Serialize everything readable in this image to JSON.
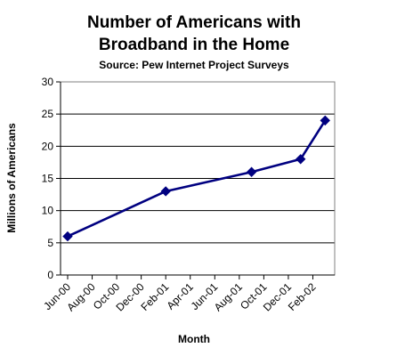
{
  "chart_data": {
    "type": "line",
    "title": "Number of Americans with Broadband in the Home",
    "title_lines": [
      "Number of Americans with",
      "Broadband in the Home"
    ],
    "subtitle": "Source: Pew Internet Project Surveys",
    "xlabel": "Month",
    "ylabel": "Millions of Americans",
    "x_tick_labels": [
      "Jun-00",
      "Aug-00",
      "Oct-00",
      "Dec-00",
      "Feb-01",
      "Apr-01",
      "Jun-01",
      "Aug-01",
      "Oct-01",
      "Dec-01",
      "Feb-02"
    ],
    "y_ticks": [
      0,
      5,
      10,
      15,
      20,
      25,
      30
    ],
    "ylim": [
      0,
      30
    ],
    "grid": true,
    "series": [
      {
        "x": [
          "Jun-00",
          "Feb-01",
          "Sep-01",
          "Jan-02",
          "Mar-02"
        ],
        "values": [
          6,
          13,
          16,
          18,
          24
        ]
      }
    ],
    "colors": {
      "series": "#000080",
      "axis": "#000000",
      "grid": "#000000"
    }
  }
}
